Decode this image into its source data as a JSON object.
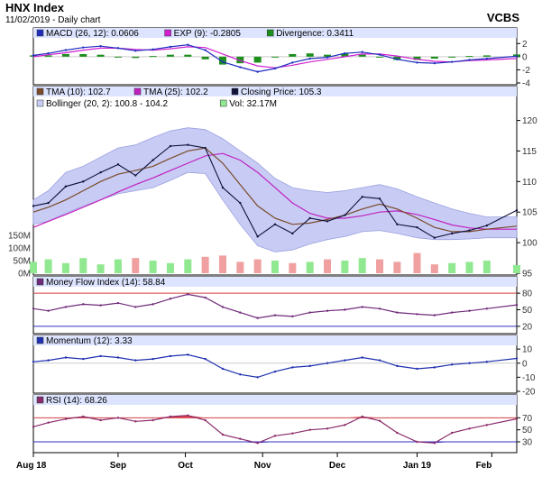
{
  "header": {
    "title": "HNX Index",
    "subtitle": "11/02/2019 - Daily chart",
    "brand": "VCBS"
  },
  "colors": {
    "panel_bg": "#ffffff",
    "header_bar": "#dde4ff",
    "grid": "#cccccc",
    "band_fill": "#c8ccf4",
    "band_edge": "#9aa0e0",
    "tma10": "#7a4a2a",
    "tma25": "#c020c0",
    "close": "#10103a",
    "macd": "#1f2dbf",
    "exp": "#d020d0",
    "divergence": "#1d8f1d",
    "vol_up": "#90e890",
    "vol_down": "#f0a0a0",
    "mfi": "#702a7a",
    "ref_red": "#d04040",
    "ref_blue": "#3030c0",
    "momentum": "#2030b0",
    "rsi": "#8a2a6a",
    "rsi_over": "#e04050",
    "rsi_under": "#5050e0"
  },
  "chart_data": [
    {
      "type": "bar",
      "panel": "macd",
      "legend": [
        {
          "label": "MACD (26, 12): 0.0606",
          "color": "#1f2dbf"
        },
        {
          "label": "EXP (9): -0.2805",
          "color": "#d020d0"
        },
        {
          "label": "Divergence: 0.3411",
          "color": "#1d8f1d"
        }
      ],
      "ylim": [
        -4,
        3
      ],
      "yticks": [
        2,
        0,
        -2,
        -4
      ],
      "x": [
        "2018-08-01",
        "2018-08-07",
        "2018-08-14",
        "2018-08-21",
        "2018-08-28",
        "2018-09-04",
        "2018-09-11",
        "2018-09-18",
        "2018-09-25",
        "2018-10-02",
        "2018-10-09",
        "2018-10-16",
        "2018-10-23",
        "2018-10-30",
        "2018-11-06",
        "2018-11-13",
        "2018-11-20",
        "2018-11-27",
        "2018-12-04",
        "2018-12-11",
        "2018-12-18",
        "2018-12-25",
        "2019-01-02",
        "2019-01-09",
        "2019-01-16",
        "2019-01-23",
        "2019-01-30",
        "2019-02-11"
      ],
      "series": [
        {
          "name": "MACD",
          "values": [
            0.2,
            0.5,
            1.0,
            1.4,
            1.6,
            1.3,
            0.9,
            1.1,
            1.5,
            1.8,
            1.0,
            -0.8,
            -1.6,
            -2.3,
            -1.8,
            -0.9,
            -0.3,
            -0.1,
            0.5,
            0.7,
            0.3,
            -0.4,
            -0.9,
            -1.0,
            -0.8,
            -0.5,
            -0.3,
            0.06
          ]
        },
        {
          "name": "EXP",
          "values": [
            0.0,
            0.3,
            0.6,
            1.0,
            1.3,
            1.3,
            1.1,
            1.0,
            1.2,
            1.5,
            1.4,
            0.4,
            -0.6,
            -1.4,
            -1.7,
            -1.3,
            -0.8,
            -0.4,
            0.0,
            0.4,
            0.4,
            0.1,
            -0.4,
            -0.7,
            -0.8,
            -0.6,
            -0.5,
            -0.28
          ]
        },
        {
          "name": "Divergence",
          "values": [
            0.2,
            0.2,
            0.4,
            0.4,
            0.3,
            0.0,
            -0.2,
            0.1,
            0.3,
            0.3,
            -0.4,
            -1.2,
            -1.0,
            -0.9,
            -0.1,
            0.4,
            0.5,
            0.3,
            0.5,
            0.3,
            -0.1,
            -0.5,
            -0.5,
            -0.3,
            0.0,
            0.1,
            0.2,
            0.34
          ]
        }
      ]
    },
    {
      "type": "line",
      "panel": "price",
      "legend": [
        {
          "label": "TMA (10): 102.7",
          "color": "#7a4a2a"
        },
        {
          "label": "TMA (25): 102.2",
          "color": "#c020c0"
        },
        {
          "label": "Closing Price: 105.3",
          "color": "#10103a"
        },
        {
          "label": "Bollinger (20, 2): 100.8 - 104.2",
          "color": "#c8ccf4"
        },
        {
          "label": "Vol: 32.17M",
          "color": "#90e890"
        }
      ],
      "ylim": [
        95,
        122
      ],
      "yticks": [
        120,
        115,
        110,
        105,
        100,
        95
      ],
      "vol_ylim": [
        0,
        200
      ],
      "vol_ticks": [
        "150M",
        "100M",
        "50M",
        "0M"
      ],
      "x": [
        "2018-08-01",
        "2018-08-07",
        "2018-08-14",
        "2018-08-21",
        "2018-08-28",
        "2018-09-04",
        "2018-09-11",
        "2018-09-18",
        "2018-09-25",
        "2018-10-02",
        "2018-10-09",
        "2018-10-16",
        "2018-10-23",
        "2018-10-30",
        "2018-11-06",
        "2018-11-13",
        "2018-11-20",
        "2018-11-27",
        "2018-12-04",
        "2018-12-11",
        "2018-12-18",
        "2018-12-25",
        "2019-01-02",
        "2019-01-09",
        "2019-01-16",
        "2019-01-23",
        "2019-01-30",
        "2019-02-11"
      ],
      "series": [
        {
          "name": "Closing Price",
          "values": [
            106.0,
            106.5,
            109.2,
            110.0,
            111.5,
            112.8,
            111.0,
            113.5,
            115.8,
            116.0,
            115.5,
            109.0,
            106.5,
            101.0,
            103.0,
            101.5,
            104.0,
            103.5,
            104.5,
            107.5,
            107.2,
            103.0,
            102.5,
            100.8,
            101.5,
            102.0,
            102.8,
            105.3
          ]
        },
        {
          "name": "TMA (10)",
          "values": [
            105.0,
            105.8,
            107.0,
            108.5,
            110.0,
            111.2,
            111.8,
            112.5,
            113.8,
            115.0,
            115.5,
            113.0,
            109.5,
            106.0,
            104.0,
            103.0,
            103.2,
            103.8,
            104.5,
            105.5,
            106.3,
            105.5,
            104.0,
            102.5,
            101.8,
            101.8,
            102.2,
            102.7
          ]
        },
        {
          "name": "TMA (25)",
          "values": [
            102.5,
            103.5,
            104.6,
            105.8,
            107.0,
            108.3,
            109.5,
            110.6,
            111.8,
            113.0,
            114.2,
            114.6,
            113.5,
            111.5,
            109.0,
            106.5,
            104.8,
            104.0,
            104.0,
            104.4,
            105.0,
            105.2,
            104.6,
            103.8,
            102.9,
            102.4,
            102.2,
            102.2
          ]
        },
        {
          "name": "Bollinger Upper",
          "values": [
            107.0,
            108.5,
            111.5,
            112.5,
            114.0,
            115.5,
            116.0,
            117.2,
            118.3,
            118.8,
            118.5,
            117.0,
            115.0,
            113.0,
            110.5,
            109.0,
            108.5,
            108.2,
            108.5,
            109.0,
            109.5,
            108.8,
            107.5,
            106.5,
            105.5,
            104.8,
            104.2,
            104.2
          ]
        },
        {
          "name": "Bollinger Lower",
          "values": [
            103.0,
            103.5,
            104.8,
            106.0,
            107.0,
            108.0,
            108.5,
            109.0,
            110.2,
            111.5,
            111.3,
            107.0,
            103.0,
            99.5,
            98.5,
            98.8,
            99.8,
            100.5,
            101.0,
            101.8,
            102.0,
            101.5,
            100.8,
            100.5,
            100.5,
            100.6,
            100.8,
            100.8
          ]
        },
        {
          "name": "Vol",
          "values": [
            45,
            55,
            40,
            60,
            35,
            55,
            60,
            50,
            40,
            55,
            65,
            70,
            45,
            55,
            50,
            40,
            45,
            55,
            50,
            60,
            55,
            45,
            80,
            35,
            40,
            45,
            50,
            32.17
          ]
        }
      ]
    },
    {
      "type": "line",
      "panel": "mfi",
      "legend": [
        {
          "label": "Money Flow Index (14): 58.84",
          "color": "#702a7a"
        }
      ],
      "ylim": [
        10,
        90
      ],
      "yticks": [
        80,
        50,
        20
      ],
      "ref_lines": [
        80,
        20
      ],
      "x": [
        "2018-08-01",
        "2018-08-07",
        "2018-08-14",
        "2018-08-21",
        "2018-08-28",
        "2018-09-04",
        "2018-09-11",
        "2018-09-18",
        "2018-09-25",
        "2018-10-02",
        "2018-10-09",
        "2018-10-16",
        "2018-10-23",
        "2018-10-30",
        "2018-11-06",
        "2018-11-13",
        "2018-11-20",
        "2018-11-27",
        "2018-12-04",
        "2018-12-11",
        "2018-12-18",
        "2018-12-25",
        "2019-01-02",
        "2019-01-09",
        "2019-01-16",
        "2019-01-23",
        "2019-01-30",
        "2019-02-11"
      ],
      "series": [
        {
          "name": "Money Flow Index",
          "values": [
            52,
            48,
            55,
            60,
            58,
            62,
            55,
            60,
            70,
            78,
            72,
            55,
            45,
            35,
            40,
            38,
            45,
            48,
            50,
            55,
            52,
            45,
            42,
            40,
            45,
            48,
            52,
            58.84
          ]
        }
      ]
    },
    {
      "type": "line",
      "panel": "momentum",
      "legend": [
        {
          "label": "Momentum (12): 3.33",
          "color": "#2030b0"
        }
      ],
      "ylim": [
        -20,
        12
      ],
      "yticks": [
        10,
        0,
        -10,
        -20
      ],
      "x": [
        "2018-08-01",
        "2018-08-07",
        "2018-08-14",
        "2018-08-21",
        "2018-08-28",
        "2018-09-04",
        "2018-09-11",
        "2018-09-18",
        "2018-09-25",
        "2018-10-02",
        "2018-10-09",
        "2018-10-16",
        "2018-10-23",
        "2018-10-30",
        "2018-11-06",
        "2018-11-13",
        "2018-11-20",
        "2018-11-27",
        "2018-12-04",
        "2018-12-11",
        "2018-12-18",
        "2018-12-25",
        "2019-01-02",
        "2019-01-09",
        "2019-01-16",
        "2019-01-23",
        "2019-01-30",
        "2019-02-11"
      ],
      "series": [
        {
          "name": "Momentum",
          "values": [
            1,
            2,
            4,
            3,
            5,
            4,
            2,
            3,
            5,
            6,
            3,
            -4,
            -8,
            -10,
            -6,
            -3,
            -2,
            0,
            2,
            4,
            2,
            -2,
            -4,
            -3,
            -1,
            0,
            1,
            3.33
          ]
        }
      ]
    },
    {
      "type": "line",
      "panel": "rsi",
      "legend": [
        {
          "label": "RSI (14): 68.26",
          "color": "#8a2a6a"
        }
      ],
      "ylim": [
        15,
        90
      ],
      "yticks": [
        70,
        50,
        30
      ],
      "ref_lines": [
        70,
        30
      ],
      "x": [
        "2018-08-01",
        "2018-08-07",
        "2018-08-14",
        "2018-08-21",
        "2018-08-28",
        "2018-09-04",
        "2018-09-11",
        "2018-09-18",
        "2018-09-25",
        "2018-10-02",
        "2018-10-09",
        "2018-10-16",
        "2018-10-23",
        "2018-10-30",
        "2018-11-06",
        "2018-11-13",
        "2018-11-20",
        "2018-11-27",
        "2018-12-04",
        "2018-12-11",
        "2018-12-18",
        "2018-12-25",
        "2019-01-02",
        "2019-01-09",
        "2019-01-16",
        "2019-01-23",
        "2019-01-30",
        "2019-02-11"
      ],
      "series": [
        {
          "name": "RSI",
          "values": [
            55,
            62,
            68,
            72,
            66,
            70,
            64,
            66,
            72,
            74,
            66,
            42,
            35,
            28,
            40,
            44,
            50,
            52,
            58,
            72,
            65,
            45,
            30,
            28,
            45,
            52,
            58,
            68.26
          ]
        }
      ]
    }
  ],
  "x_axis": {
    "labels": [
      "Aug 18",
      "Sep",
      "Oct",
      "Nov",
      "Dec",
      "Jan 19",
      "Feb"
    ],
    "label_dates": [
      "2018-08-01",
      "2018-09-04",
      "2018-10-01",
      "2018-11-01",
      "2018-12-01",
      "2019-01-02",
      "2019-02-01"
    ]
  }
}
